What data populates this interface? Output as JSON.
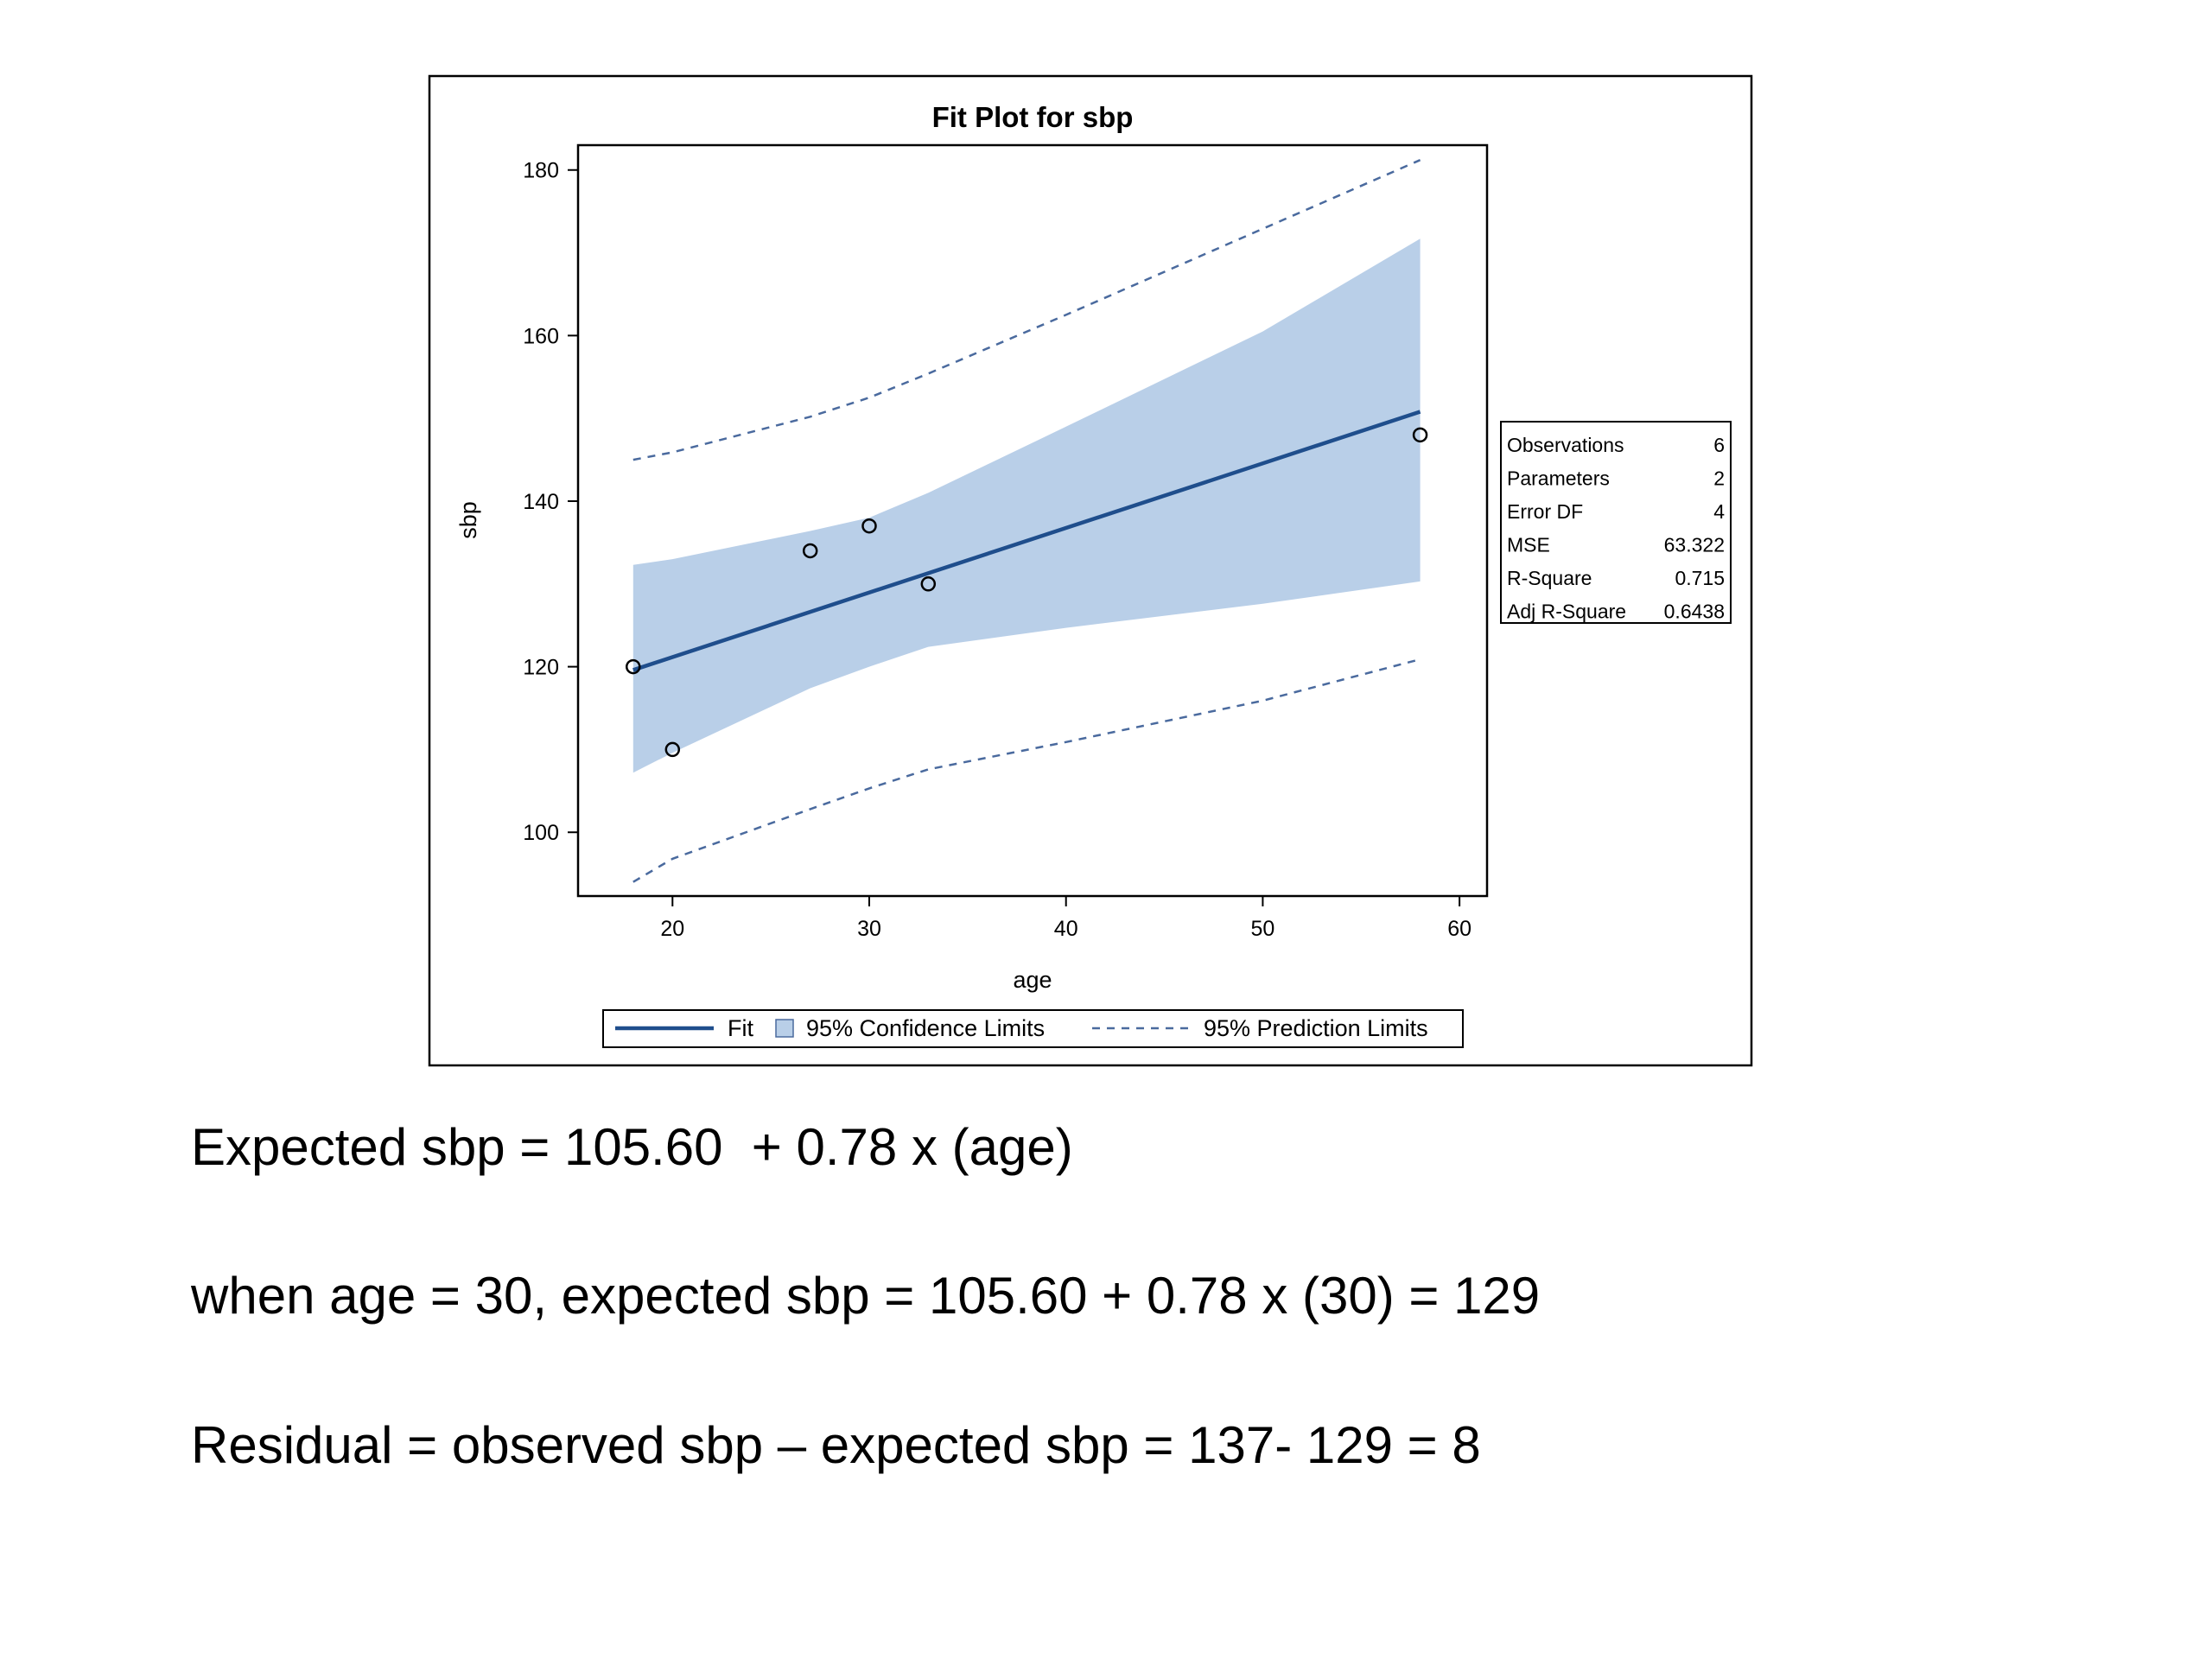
{
  "chart_data": {
    "type": "scatter",
    "title": "Fit Plot for sbp",
    "xlabel": "age",
    "ylabel": "sbp",
    "xlim": [
      15.2,
      61.4
    ],
    "ylim": [
      92.3,
      183.0
    ],
    "x_ticks": [
      20,
      30,
      40,
      50,
      60
    ],
    "y_ticks": [
      100,
      120,
      140,
      160,
      180
    ],
    "points": [
      {
        "x": 18,
        "y": 120
      },
      {
        "x": 20,
        "y": 110
      },
      {
        "x": 27,
        "y": 134
      },
      {
        "x": 30,
        "y": 137
      },
      {
        "x": 33,
        "y": 130
      },
      {
        "x": 58,
        "y": 148
      }
    ],
    "fit": {
      "name": "Fit",
      "x": [
        18,
        58
      ],
      "y": [
        119.6,
        150.8
      ]
    },
    "confidence_band": {
      "name": "95% Confidence Limits",
      "x": [
        18,
        20,
        27,
        30,
        33,
        40,
        50,
        58
      ],
      "upper": [
        132.3,
        133.0,
        136.4,
        138.0,
        141.0,
        149.0,
        160.5,
        171.7
      ],
      "lower": [
        107.2,
        109.6,
        117.4,
        120.0,
        122.4,
        124.7,
        127.6,
        130.3
      ]
    },
    "prediction_limits": {
      "name": "95% Prediction Limits",
      "x": [
        18,
        20,
        27,
        30,
        33,
        40,
        50,
        58
      ],
      "upper": [
        145.0,
        145.9,
        150.2,
        152.5,
        155.4,
        162.5,
        172.9,
        181.2
      ],
      "lower": [
        94.0,
        96.8,
        102.8,
        105.3,
        107.6,
        110.9,
        115.9,
        120.9
      ]
    },
    "legend": {
      "placement": "bottom",
      "entries": [
        "Fit",
        "95% Confidence Limits",
        "95% Prediction Limits"
      ]
    },
    "stats_table": [
      {
        "label": "Observations",
        "value": "6"
      },
      {
        "label": "Parameters",
        "value": "2"
      },
      {
        "label": "Error DF",
        "value": "4"
      },
      {
        "label": "MSE",
        "value": "63.322"
      },
      {
        "label": "R-Square",
        "value": "0.715"
      },
      {
        "label": "Adj R-Square",
        "value": "0.6438"
      }
    ],
    "colors": {
      "fit_line": "#1f4e8c",
      "confidence_fill": "#b9cfe8",
      "prediction_line": "#4a6a9e",
      "marker": "#000000"
    }
  },
  "equations": {
    "expected": "Expected sbp = 105.60  + 0.78 x (age)",
    "example": "when age = 30, expected sbp = 105.60 + 0.78 x (30) = 129",
    "residual": "Residual = observed sbp – expected sbp = 137- 129 = 8"
  }
}
